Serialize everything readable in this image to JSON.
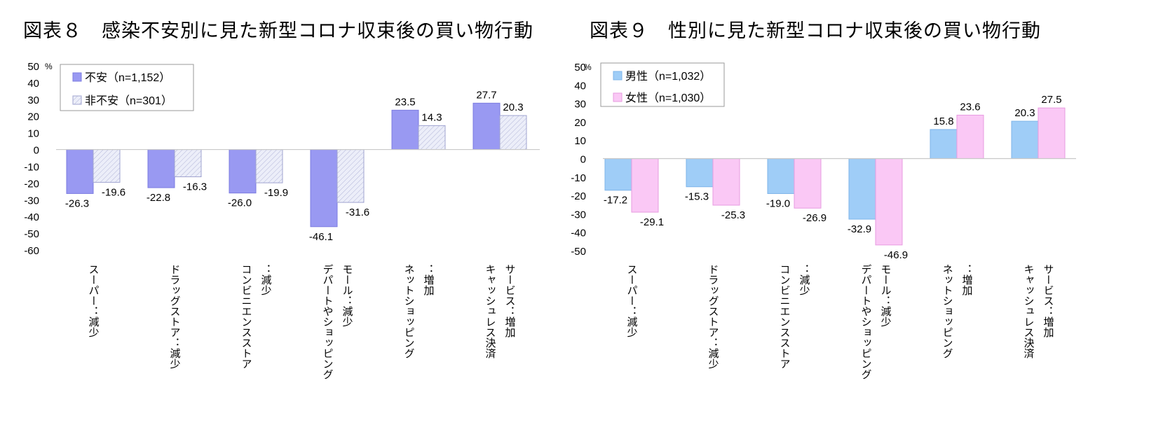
{
  "charts": [
    {
      "title": "図表８　感染不安別に見た新型コロナ収束後の買い物行動",
      "unit": "%",
      "legend": [
        {
          "label": "不安（n=1,152）",
          "color": "#9999f2",
          "pattern": "solid"
        },
        {
          "label": "非不安（n=301）",
          "color": "#e6e8f8",
          "pattern": "hatch"
        }
      ]
    },
    {
      "title": "図表９　性別に見た新型コロナ収束後の買い物行動",
      "unit": "%",
      "legend": [
        {
          "label": "男性（n=1,032）",
          "color": "#9fcdf7",
          "pattern": "solid"
        },
        {
          "label": "女性（n=1,030）",
          "color": "#fac8f5",
          "pattern": "solid"
        }
      ]
    }
  ],
  "chart_data": [
    {
      "type": "bar",
      "title": "図表８　感染不安別に見た新型コロナ収束後の買い物行動",
      "ylabel": "%",
      "ylim": [
        -60,
        50
      ],
      "yticks": [
        50,
        40,
        30,
        20,
        10,
        0,
        -10,
        -20,
        -30,
        -40,
        -50,
        -60
      ],
      "categories": [
        [
          "スーパー：減少"
        ],
        [
          "ドラッグストア：減少"
        ],
        [
          "コンビニエンスストア",
          "：減少"
        ],
        [
          "デパートやショッピング",
          "モール：減少"
        ],
        [
          "ネットショッピング",
          "：増加"
        ],
        [
          "キャッシュレス決済",
          "サービス：増加"
        ]
      ],
      "series": [
        {
          "name": "不安（n=1,152）",
          "values": [
            -26.3,
            -22.8,
            -26.0,
            -46.1,
            23.5,
            27.7
          ],
          "labels": [
            "-26.3",
            "-22.8",
            "-26.0",
            "-46.1",
            "23.5",
            "27.7"
          ]
        },
        {
          "name": "非不安（n=301）",
          "values": [
            -19.6,
            -16.3,
            -19.9,
            -31.6,
            14.3,
            20.3
          ],
          "labels": [
            "-19.6",
            "-16.3",
            "-19.9",
            "-31.6",
            "14.3",
            "20.3"
          ]
        }
      ],
      "legend_position": "top-left",
      "grid": false
    },
    {
      "type": "bar",
      "title": "図表９　性別に見た新型コロナ収束後の買い物行動",
      "ylabel": "%",
      "ylim": [
        -50,
        50
      ],
      "yticks": [
        50,
        40,
        30,
        20,
        10,
        0,
        -10,
        -20,
        -30,
        -40,
        -50
      ],
      "categories": [
        [
          "スーパー：減少"
        ],
        [
          "ドラッグストア：減少"
        ],
        [
          "コンビニエンスストア",
          "：減少"
        ],
        [
          "デパートやショッピング",
          "モール：減少"
        ],
        [
          "ネットショッピング",
          "：増加"
        ],
        [
          "キャッシュレス決済",
          "サービス：増加"
        ]
      ],
      "series": [
        {
          "name": "男性（n=1,032）",
          "values": [
            -17.2,
            -15.3,
            -19.0,
            -32.9,
            15.8,
            20.3
          ],
          "labels": [
            "-17.2",
            "-15.3",
            "-19.0",
            "-32.9",
            "15.8",
            "20.3"
          ]
        },
        {
          "name": "女性（n=1,030）",
          "values": [
            -29.1,
            -25.3,
            -26.9,
            -46.9,
            23.6,
            27.5
          ],
          "labels": [
            "-29.1",
            "-25.3",
            "-26.9",
            "-46.9",
            "23.6",
            "27.5"
          ]
        }
      ],
      "legend_position": "top-left",
      "grid": false
    }
  ]
}
